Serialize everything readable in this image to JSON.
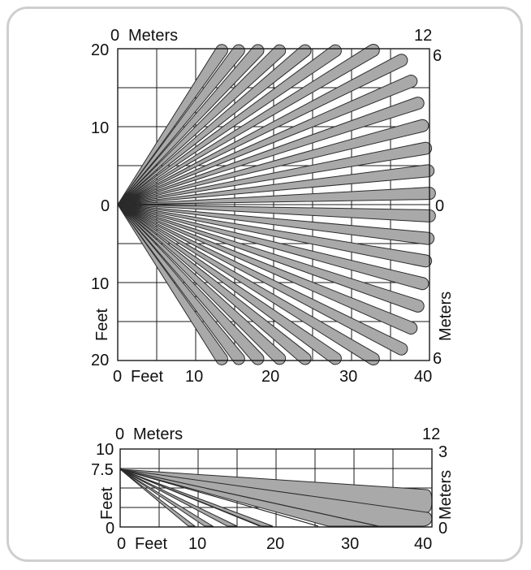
{
  "top_diagram": {
    "left_axis": {
      "unit": "Feet",
      "ticks": [
        "20",
        "10",
        "0",
        "10",
        "20"
      ]
    },
    "right_axis": {
      "unit": "Meters",
      "ticks": [
        "6",
        "0",
        "6"
      ]
    },
    "top_axis": {
      "unit": "Meters",
      "ticks": [
        "0",
        "12"
      ]
    },
    "bottom_axis": {
      "unit": "Feet",
      "ticks": [
        "0",
        "10",
        "20",
        "30",
        "40"
      ]
    },
    "beam_count": 28
  },
  "bottom_diagram": {
    "left_axis": {
      "unit": "Feet",
      "ticks": [
        "10",
        "7.5",
        "0"
      ]
    },
    "right_axis": {
      "unit": "Meters",
      "ticks": [
        "3",
        "0"
      ]
    },
    "top_axis": {
      "unit": "Meters",
      "ticks": [
        "0",
        "12"
      ]
    },
    "bottom_axis": {
      "unit": "Feet",
      "ticks": [
        "0",
        "10",
        "20",
        "30",
        "40"
      ]
    }
  },
  "colors": {
    "beam_fill": "#a9a9a9",
    "outline": "#1a1a1a",
    "card_border": "#cfcfcf"
  }
}
